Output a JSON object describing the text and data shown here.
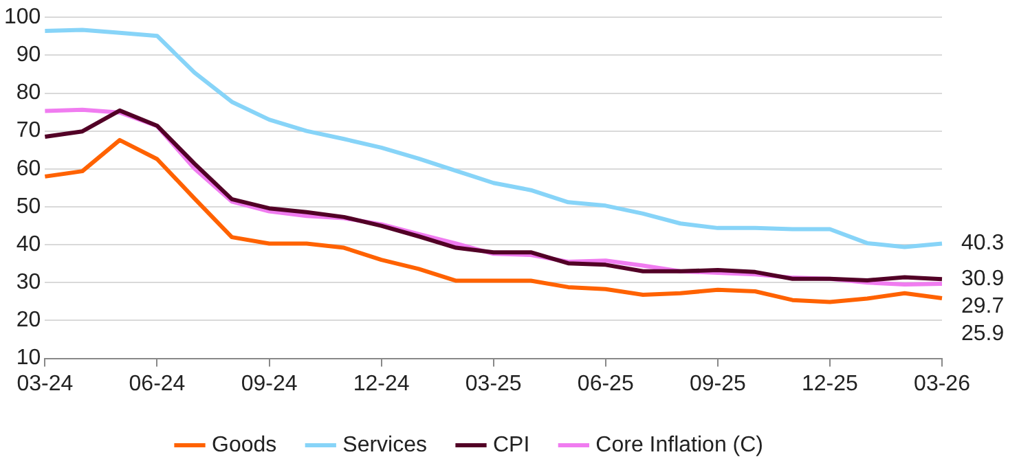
{
  "chart_data": {
    "type": "line",
    "categories": [
      "03-24",
      null,
      null,
      "06-24",
      null,
      null,
      "09-24",
      null,
      null,
      "12-24",
      null,
      null,
      "03-25",
      null,
      null,
      "06-25",
      null,
      null,
      "09-25",
      null,
      null,
      "12-25",
      null,
      null,
      "03-26"
    ],
    "series": [
      {
        "name": "Goods",
        "color": "#ff6200",
        "values": [
          58.0,
          59.4,
          67.6,
          62.6,
          52.2,
          42.0,
          40.3,
          40.3,
          39.2,
          36.0,
          33.6,
          30.5,
          30.5,
          30.5,
          28.8,
          28.3,
          26.8,
          27.2,
          28.1,
          27.7,
          25.4,
          24.9,
          25.8,
          27.2,
          25.9
        ]
      },
      {
        "name": "Services",
        "color": "#87d4f8",
        "values": [
          96.4,
          96.7,
          95.9,
          95.1,
          85.4,
          77.7,
          73.0,
          70.0,
          67.9,
          65.6,
          62.7,
          59.5,
          56.3,
          54.4,
          51.2,
          50.3,
          48.2,
          45.6,
          44.4,
          44.4,
          44.1,
          44.1,
          40.4,
          39.4,
          40.3
        ]
      },
      {
        "name": "CPI",
        "color": "#520026",
        "values": [
          68.5,
          69.9,
          75.4,
          71.4,
          61.4,
          52.0,
          49.6,
          48.6,
          47.3,
          45.0,
          42.2,
          39.2,
          38.0,
          38.0,
          35.1,
          34.7,
          33.0,
          33.0,
          33.3,
          32.8,
          31.0,
          31.0,
          30.6,
          31.4,
          30.9
        ]
      },
      {
        "name": "Core Inflation (C)",
        "color": "#f07cf0",
        "values": [
          75.3,
          75.6,
          74.9,
          71.3,
          60.1,
          51.4,
          48.8,
          47.6,
          47.0,
          45.4,
          42.8,
          40.3,
          37.6,
          37.3,
          35.5,
          35.8,
          34.5,
          33.0,
          32.6,
          32.2,
          31.3,
          31.0,
          30.0,
          29.5,
          29.7
        ]
      }
    ],
    "ylim": [
      10,
      100
    ],
    "yticks": [
      10,
      20,
      30,
      40,
      50,
      60,
      70,
      80,
      90,
      100
    ],
    "grid": "y",
    "legend": "bottom",
    "marker": "none",
    "line_style": "solid",
    "annotations": [
      {
        "text": "40.3",
        "x": "03-26",
        "y": 40.3
      },
      {
        "text": "30.9",
        "x": "03-26",
        "y": 30.9
      },
      {
        "text": "29.7",
        "x": "03-26",
        "y": 29.7
      },
      {
        "text": "25.9",
        "x": "03-26",
        "y": 25.9
      }
    ]
  }
}
